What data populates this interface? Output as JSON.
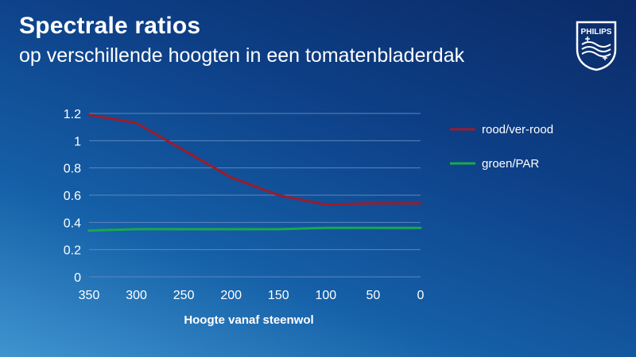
{
  "header": {
    "title": "Spectrale ratios",
    "subtitle": "op verschillende hoogten in een tomatenbladerdak"
  },
  "logo": {
    "text": "PHILIPS",
    "icon": "philips-shield-icon"
  },
  "colors": {
    "series_red": "#9b1c2c",
    "series_green": "#1aa84a",
    "grid": "#5b86bf"
  },
  "chart_data": {
    "type": "line",
    "xlabel": "Hoogte vanaf steenwol",
    "ylabel": "",
    "x": [
      350,
      300,
      250,
      200,
      150,
      100,
      50,
      0
    ],
    "x_reversed": true,
    "xlim": [
      350,
      0
    ],
    "ylim": [
      0,
      1.2
    ],
    "yticks": [
      "0",
      "0.2",
      "0.4",
      "0.6",
      "0.8",
      "1",
      "1.2"
    ],
    "xticks": [
      "350",
      "300",
      "250",
      "200",
      "150",
      "100",
      "50",
      "0"
    ],
    "grid": true,
    "legend_position": "right",
    "series": [
      {
        "name": "rood/ver-rood",
        "color": "#9b1c2c",
        "values": [
          1.19,
          1.13,
          0.93,
          0.73,
          0.6,
          0.53,
          0.54,
          0.54
        ]
      },
      {
        "name": "groen/PAR",
        "color": "#1aa84a",
        "values": [
          0.34,
          0.35,
          0.35,
          0.35,
          0.35,
          0.36,
          0.36,
          0.36
        ]
      }
    ]
  }
}
